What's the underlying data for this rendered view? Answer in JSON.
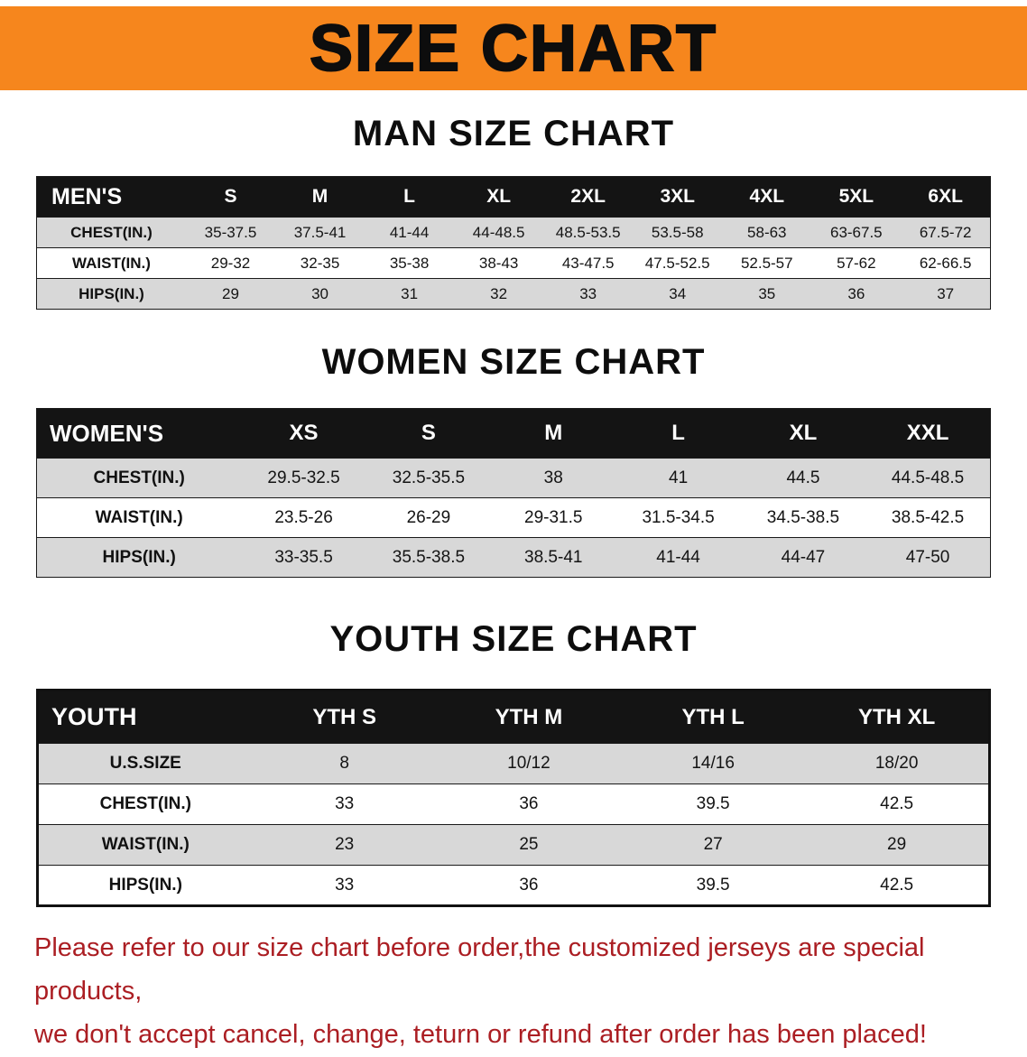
{
  "banner": {
    "title": "SIZE CHART",
    "bg_color": "#f6861d"
  },
  "sections": [
    {
      "heading": "MAN SIZE CHART",
      "table": {
        "header": [
          "MEN'S",
          "S",
          "M",
          "L",
          "XL",
          "2XL",
          "3XL",
          "4XL",
          "5XL",
          "6XL"
        ],
        "rows": [
          {
            "label": "CHEST(IN.)",
            "values": [
              "35-37.5",
              "37.5-41",
              "41-44",
              "44-48.5",
              "48.5-53.5",
              "53.5-58",
              "58-63",
              "63-67.5",
              "67.5-72"
            ]
          },
          {
            "label": "WAIST(IN.)",
            "values": [
              "29-32",
              "32-35",
              "35-38",
              "38-43",
              "43-47.5",
              "47.5-52.5",
              "52.5-57",
              "57-62",
              "62-66.5"
            ]
          },
          {
            "label": "HIPS(IN.)",
            "values": [
              "29",
              "30",
              "31",
              "32",
              "33",
              "34",
              "35",
              "36",
              "37"
            ]
          }
        ]
      }
    },
    {
      "heading": "WOMEN SIZE CHART",
      "table": {
        "header": [
          "WOMEN'S",
          "XS",
          "S",
          "M",
          "L",
          "XL",
          "XXL"
        ],
        "rows": [
          {
            "label": "CHEST(IN.)",
            "values": [
              "29.5-32.5",
              "32.5-35.5",
              "38",
              "41",
              "44.5",
              "44.5-48.5"
            ]
          },
          {
            "label": "WAIST(IN.)",
            "values": [
              "23.5-26",
              "26-29",
              "29-31.5",
              "31.5-34.5",
              "34.5-38.5",
              "38.5-42.5"
            ]
          },
          {
            "label": "HIPS(IN.)",
            "values": [
              "33-35.5",
              "35.5-38.5",
              "38.5-41",
              "41-44",
              "44-47",
              "47-50"
            ]
          }
        ]
      }
    },
    {
      "heading": "YOUTH SIZE CHART",
      "table": {
        "header": [
          "YOUTH",
          "YTH S",
          "YTH M",
          "YTH L",
          "YTH XL"
        ],
        "rows": [
          {
            "label": "U.S.SIZE",
            "values": [
              "8",
              "10/12",
              "14/16",
              "18/20"
            ]
          },
          {
            "label": "CHEST(IN.)",
            "values": [
              "33",
              "36",
              "39.5",
              "42.5"
            ]
          },
          {
            "label": "WAIST(IN.)",
            "values": [
              "23",
              "25",
              "27",
              "29"
            ]
          },
          {
            "label": "HIPS(IN.)",
            "values": [
              "33",
              "36",
              "39.5",
              "42.5"
            ]
          }
        ]
      }
    }
  ],
  "disclaimer": {
    "line1": "Please refer to our size chart before order,the customized jerseys are special products,",
    "line2": "we don't accept cancel, change, teturn or refund after order has been placed!",
    "color": "#ab1e23"
  }
}
